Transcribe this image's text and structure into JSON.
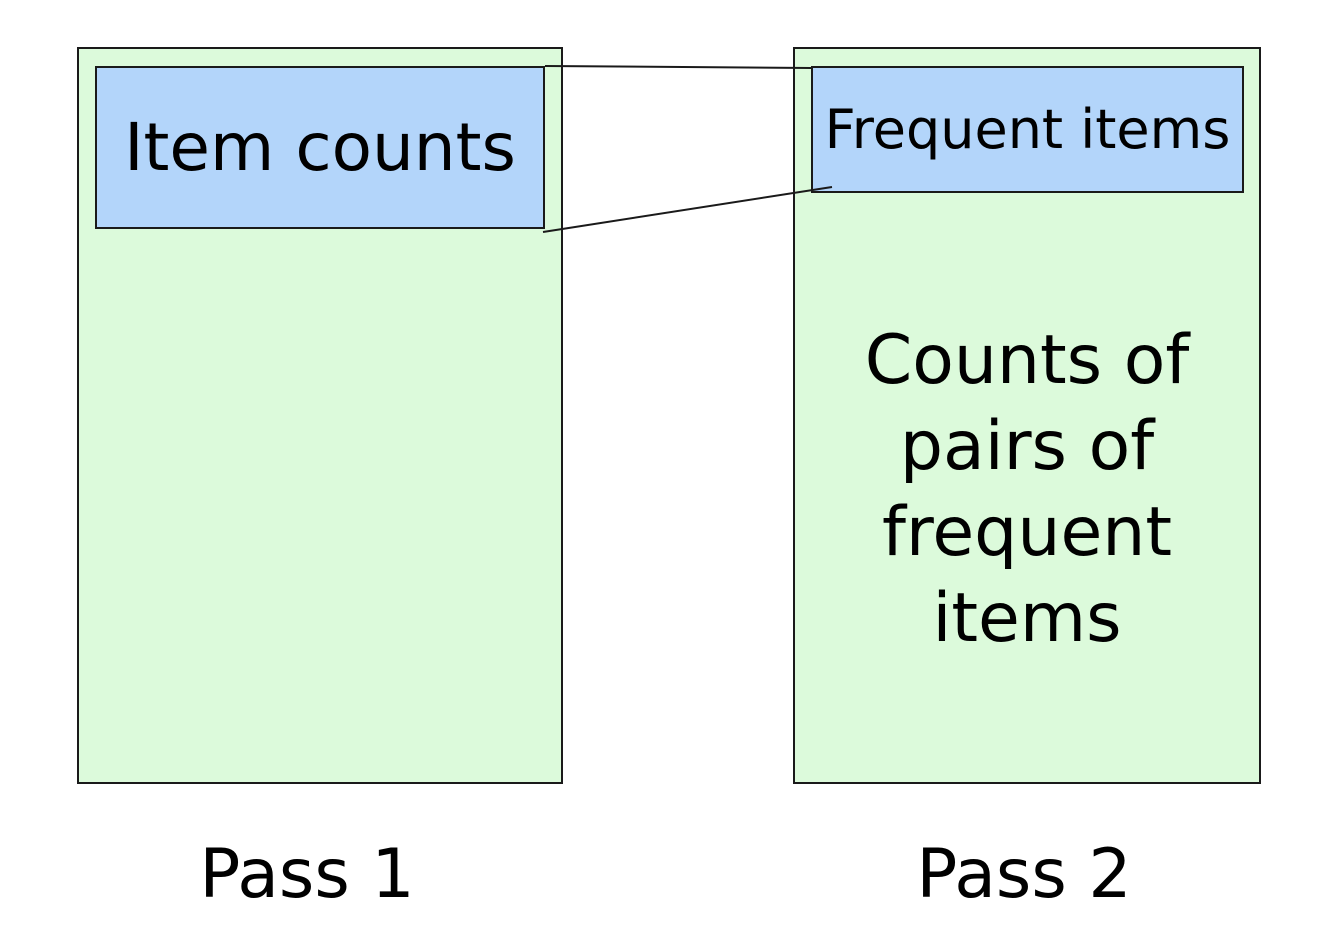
{
  "diagram": {
    "pass1": {
      "box_label": "Item counts",
      "caption": "Pass 1"
    },
    "pass2": {
      "box_label": "Frequent items",
      "main_text": [
        "Counts of",
        "pairs of",
        "frequent",
        "items"
      ],
      "caption": "Pass 2"
    },
    "colors": {
      "memory_fill": "#dcfadb",
      "table_fill": "#b3d5fa",
      "outline": "#1a1a1a"
    }
  }
}
